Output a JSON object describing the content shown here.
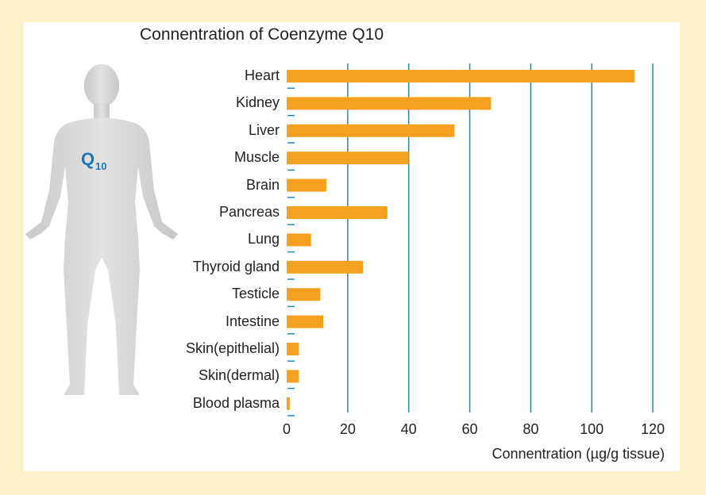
{
  "chart_data": {
    "type": "bar",
    "orientation": "horizontal",
    "title": "Connentration of Coenzyme Q10",
    "xlabel": "Connentration (µg/g tissue)",
    "ylabel": "",
    "categories": [
      "Heart",
      "Kidney",
      "Liver",
      "Muscle",
      "Brain",
      "Pancreas",
      "Lung",
      "Thyroid gland",
      "Testicle",
      "Intestine",
      "Skin(epithelial)",
      "Skin(dermal)",
      "Blood plasma"
    ],
    "values": [
      114,
      67,
      55,
      40,
      13,
      33,
      8,
      25,
      11,
      12,
      4,
      4,
      1
    ],
    "xlim": [
      0,
      120
    ],
    "xticks": [
      0,
      20,
      40,
      60,
      80,
      100,
      120
    ],
    "grid": true,
    "colors": {
      "bar": "#f5a01e",
      "grid": "#2b86b4",
      "tick": "#2b86b4"
    }
  },
  "figure": {
    "label_main": "Q",
    "label_sub": "10",
    "label_color": "#1a78b8"
  }
}
